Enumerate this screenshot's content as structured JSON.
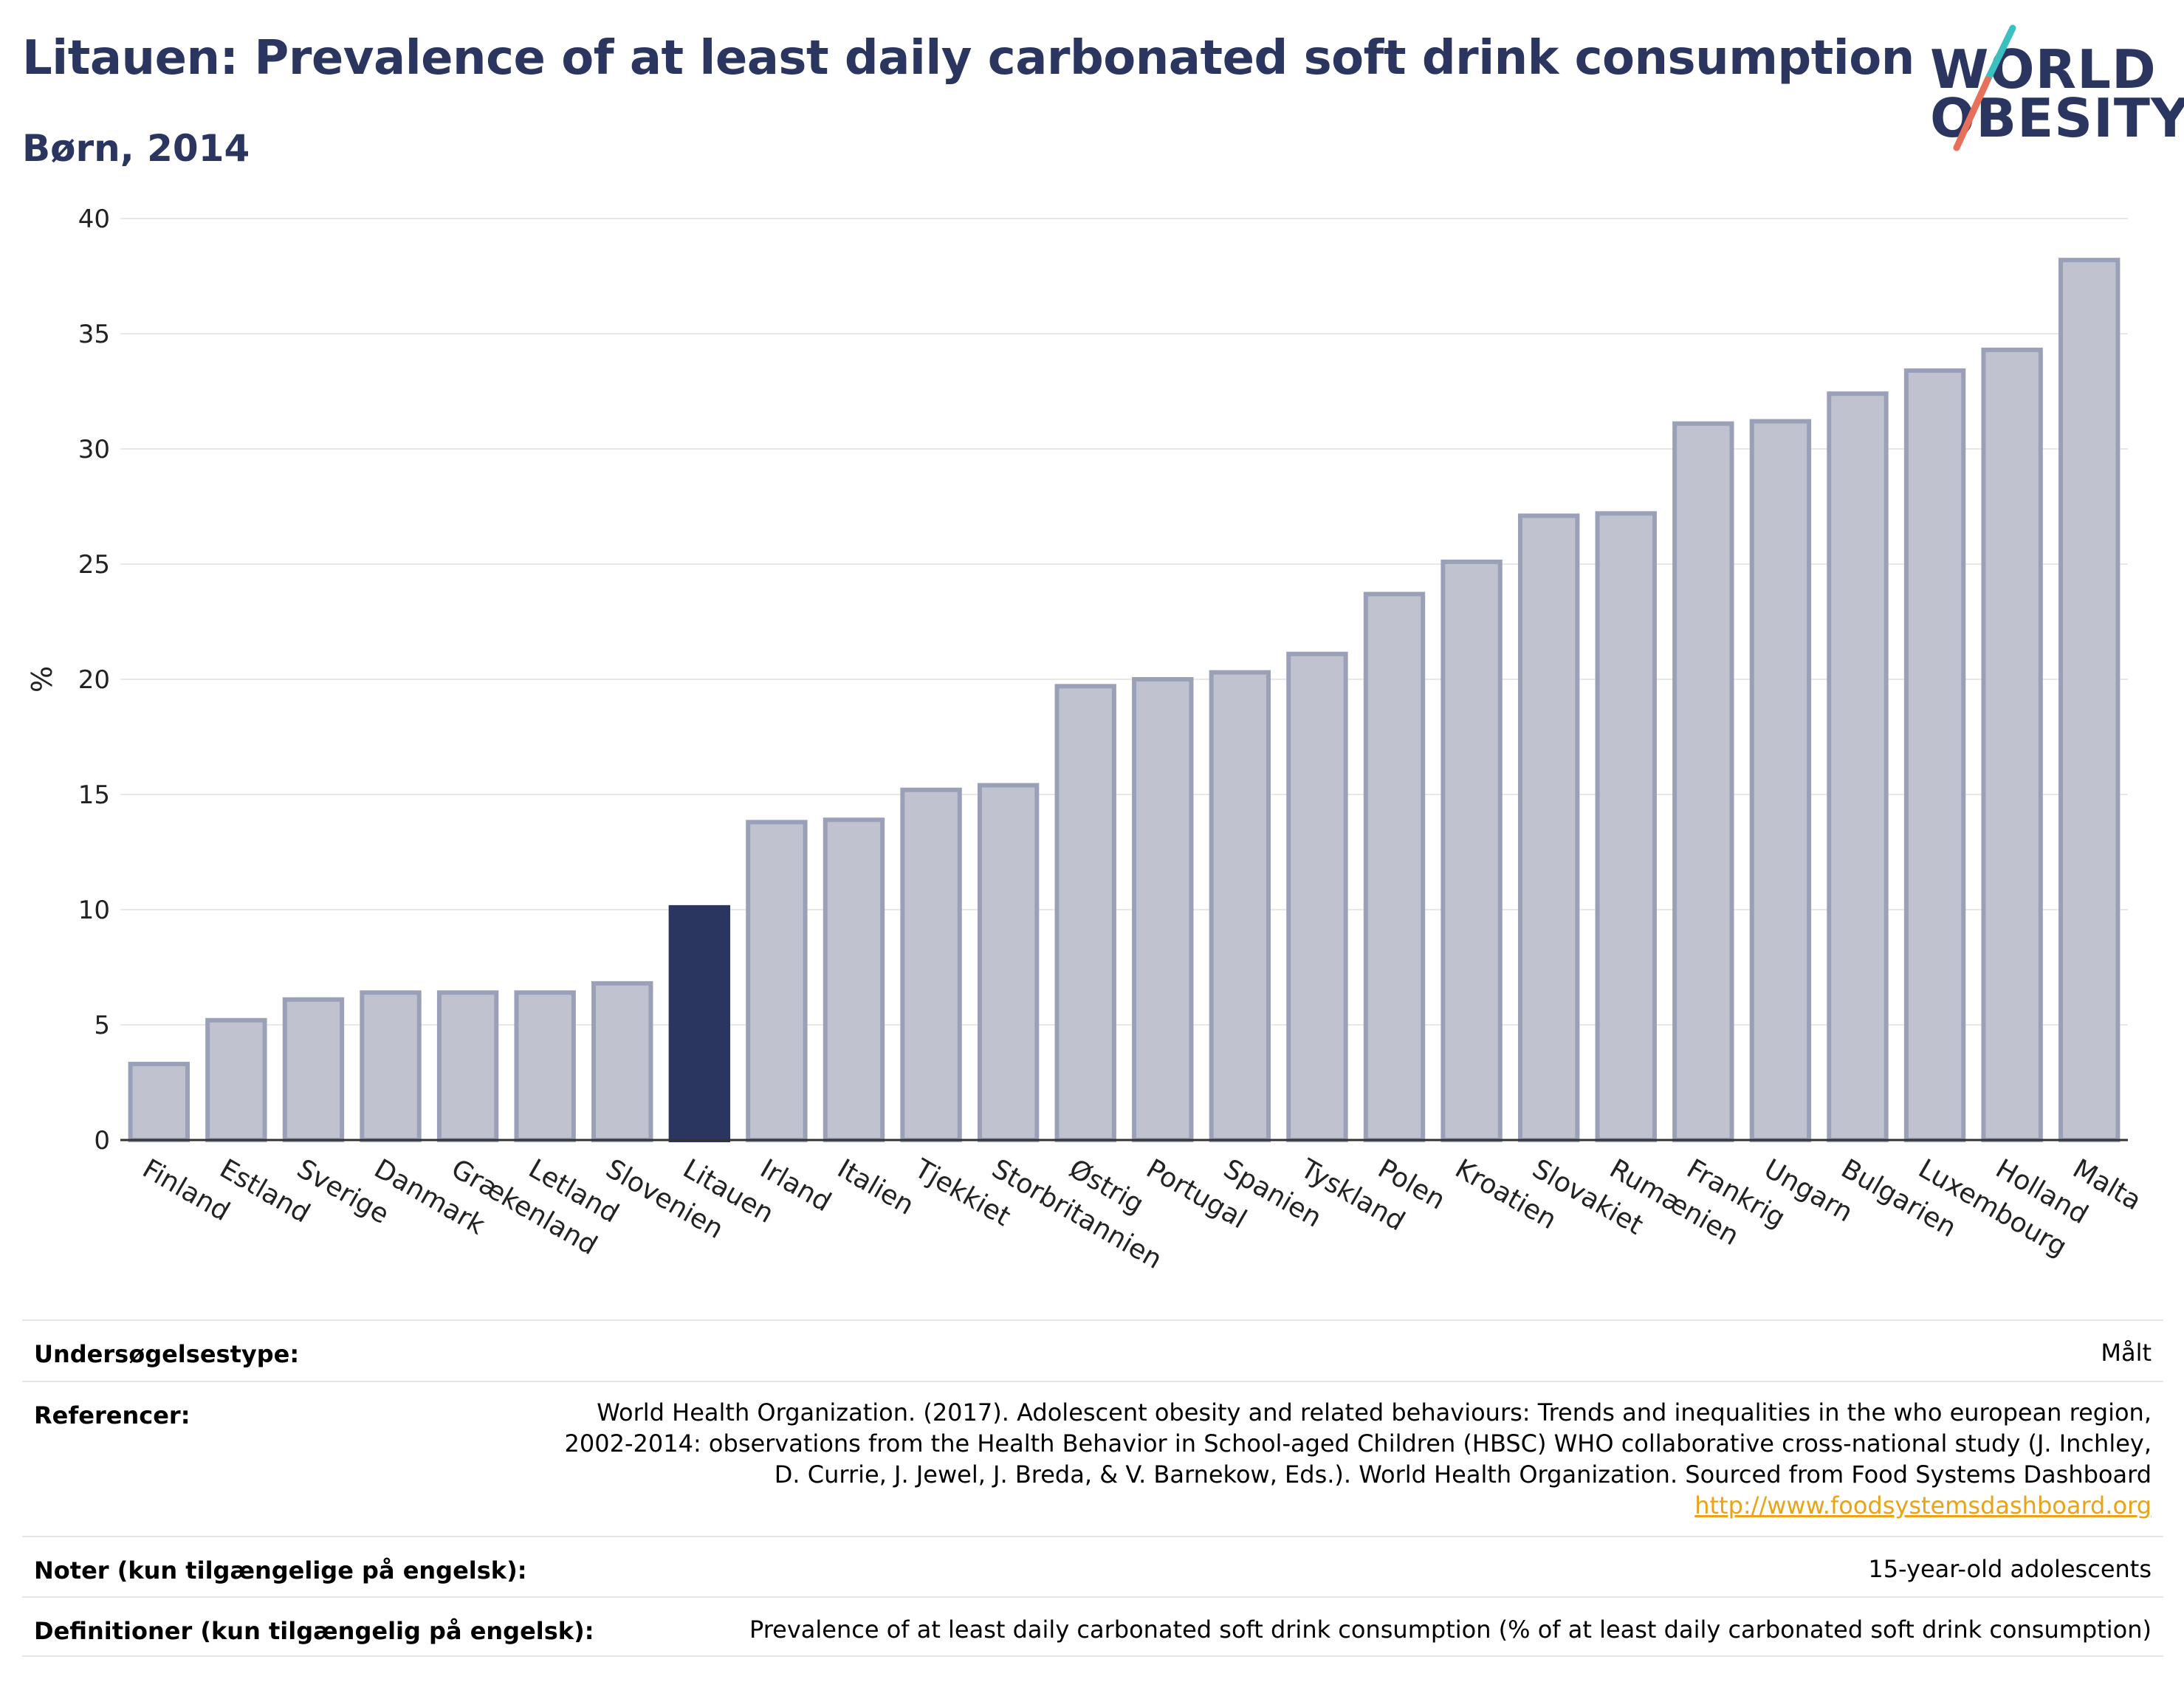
{
  "header": {
    "title": "Litauen: Prevalence of at least daily carbonated soft drink consumption",
    "subtitle": "Børn, 2014"
  },
  "logo": {
    "line1": "WORLD",
    "line2": "OBESITY",
    "colors": {
      "text": "#2b3660",
      "slash_top": "#3bbfbf",
      "slash_bottom": "#e8705a"
    }
  },
  "chart_data": {
    "type": "bar",
    "ylabel": "%",
    "xlabel": "",
    "ylim": [
      0,
      40
    ],
    "yticks": [
      0,
      5,
      10,
      15,
      20,
      25,
      30,
      35,
      40
    ],
    "grid": true,
    "highlight": "Litauen",
    "colors": {
      "bar": "#c0c3cf",
      "bar_border": "#9aa0b8",
      "highlight": "#2b3660"
    },
    "categories": [
      "Finland",
      "Estland",
      "Sverige",
      "Danmark",
      "Grækenland",
      "Letland",
      "Slovenien",
      "Litauen",
      "Irland",
      "Italien",
      "Tjekkiet",
      "Storbritannien",
      "Østrig",
      "Portugal",
      "Spanien",
      "Tyskland",
      "Polen",
      "Kroatien",
      "Slovakiet",
      "Rumænien",
      "Frankrig",
      "Ungarn",
      "Bulgarien",
      "Luxembourg",
      "Holland",
      "Malta"
    ],
    "values": [
      3.3,
      5.2,
      6.1,
      6.4,
      6.4,
      6.4,
      6.8,
      10.1,
      13.8,
      13.9,
      15.2,
      15.4,
      19.7,
      20.0,
      20.3,
      21.1,
      23.7,
      25.1,
      27.1,
      27.2,
      31.1,
      31.2,
      32.4,
      33.4,
      34.3,
      38.2
    ]
  },
  "info": {
    "survey_label": "Undersøgelsestype:",
    "survey_value": "Målt",
    "references_label": "Referencer:",
    "references_lines": [
      "World Health Organization. (2017). Adolescent obesity and related behaviours: Trends and inequalities in the who european region,",
      "2002-2014: observations from the Health Behavior in School-aged Children (HBSC) WHO collaborative cross-national study (J. Inchley,",
      "D. Currie, J. Jewel, J. Breda, & V. Barnekow, Eds.). World Health Organization. Sourced from Food Systems Dashboard"
    ],
    "references_link": "http://www.foodsystemsdashboard.org",
    "notes_label": "Noter (kun tilgængelige på engelsk):",
    "notes_value": "15-year-old adolescents",
    "definitions_label": "Definitioner (kun tilgængelig på engelsk):",
    "definitions_value": "Prevalence of at least daily carbonated soft drink consumption (% of at least daily carbonated soft drink consumption)"
  }
}
